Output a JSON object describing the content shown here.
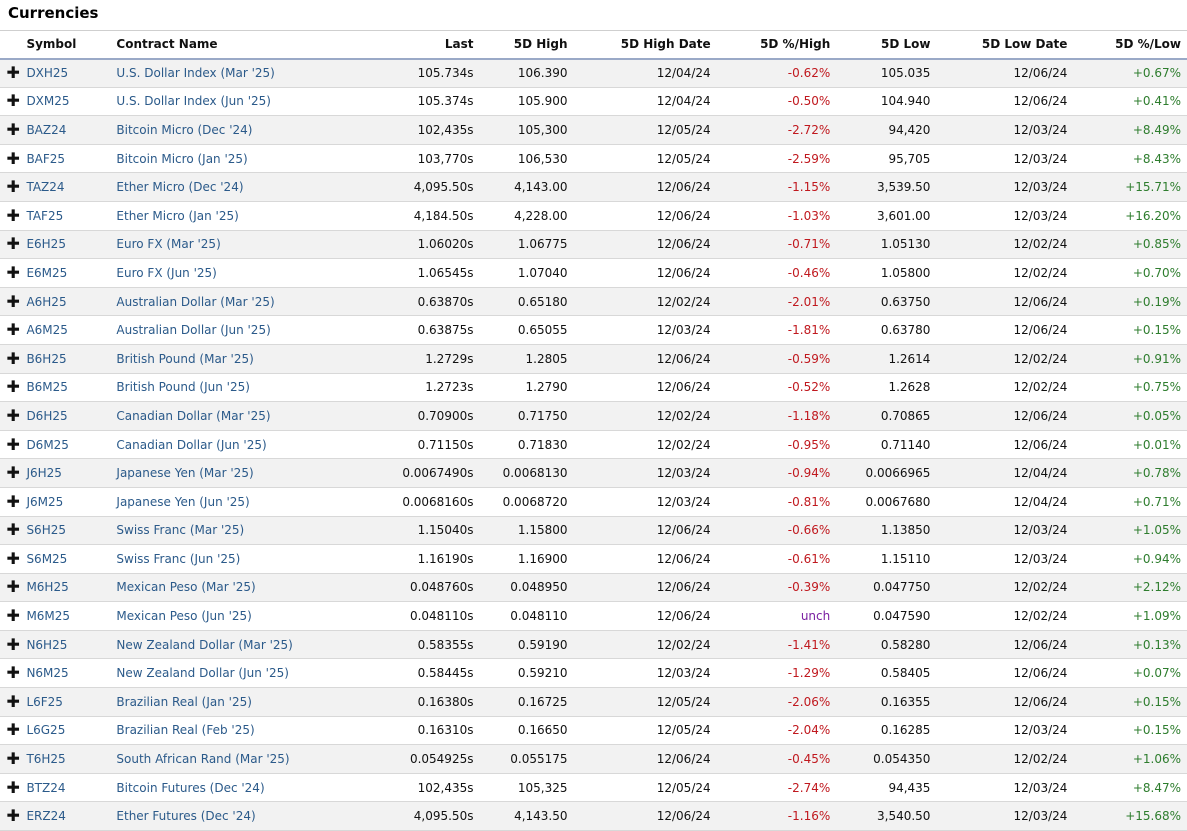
{
  "section_title": "Currencies",
  "columns": [
    "Symbol",
    "Contract Name",
    "Last",
    "5D High",
    "5D High Date",
    "5D %/High",
    "5D Low",
    "5D Low Date",
    "5D %/Low"
  ],
  "expand_icon": "plus-icon",
  "colors": {
    "link": "#2b5a8a",
    "negative": "#c0181e",
    "positive": "#2e7d2e",
    "unchanged": "#7a1fa2"
  },
  "rows": [
    {
      "symbol": "DXH25",
      "name": "U.S. Dollar Index (Mar '25)",
      "last": "105.734s",
      "high": "106.390",
      "high_date": "12/04/24",
      "pct_high": "-0.62%",
      "pct_high_dir": "neg",
      "low": "105.035",
      "low_date": "12/06/24",
      "pct_low": "+0.67%"
    },
    {
      "symbol": "DXM25",
      "name": "U.S. Dollar Index (Jun '25)",
      "last": "105.374s",
      "high": "105.900",
      "high_date": "12/04/24",
      "pct_high": "-0.50%",
      "pct_high_dir": "neg",
      "low": "104.940",
      "low_date": "12/06/24",
      "pct_low": "+0.41%"
    },
    {
      "symbol": "BAZ24",
      "name": "Bitcoin Micro (Dec '24)",
      "last": "102,435s",
      "high": "105,300",
      "high_date": "12/05/24",
      "pct_high": "-2.72%",
      "pct_high_dir": "neg",
      "low": "94,420",
      "low_date": "12/03/24",
      "pct_low": "+8.49%"
    },
    {
      "symbol": "BAF25",
      "name": "Bitcoin Micro (Jan '25)",
      "last": "103,770s",
      "high": "106,530",
      "high_date": "12/05/24",
      "pct_high": "-2.59%",
      "pct_high_dir": "neg",
      "low": "95,705",
      "low_date": "12/03/24",
      "pct_low": "+8.43%"
    },
    {
      "symbol": "TAZ24",
      "name": "Ether Micro (Dec '24)",
      "last": "4,095.50s",
      "high": "4,143.00",
      "high_date": "12/06/24",
      "pct_high": "-1.15%",
      "pct_high_dir": "neg",
      "low": "3,539.50",
      "low_date": "12/03/24",
      "pct_low": "+15.71%"
    },
    {
      "symbol": "TAF25",
      "name": "Ether Micro (Jan '25)",
      "last": "4,184.50s",
      "high": "4,228.00",
      "high_date": "12/06/24",
      "pct_high": "-1.03%",
      "pct_high_dir": "neg",
      "low": "3,601.00",
      "low_date": "12/03/24",
      "pct_low": "+16.20%"
    },
    {
      "symbol": "E6H25",
      "name": "Euro FX (Mar '25)",
      "last": "1.06020s",
      "high": "1.06775",
      "high_date": "12/06/24",
      "pct_high": "-0.71%",
      "pct_high_dir": "neg",
      "low": "1.05130",
      "low_date": "12/02/24",
      "pct_low": "+0.85%"
    },
    {
      "symbol": "E6M25",
      "name": "Euro FX (Jun '25)",
      "last": "1.06545s",
      "high": "1.07040",
      "high_date": "12/06/24",
      "pct_high": "-0.46%",
      "pct_high_dir": "neg",
      "low": "1.05800",
      "low_date": "12/02/24",
      "pct_low": "+0.70%"
    },
    {
      "symbol": "A6H25",
      "name": "Australian Dollar (Mar '25)",
      "last": "0.63870s",
      "high": "0.65180",
      "high_date": "12/02/24",
      "pct_high": "-2.01%",
      "pct_high_dir": "neg",
      "low": "0.63750",
      "low_date": "12/06/24",
      "pct_low": "+0.19%"
    },
    {
      "symbol": "A6M25",
      "name": "Australian Dollar (Jun '25)",
      "last": "0.63875s",
      "high": "0.65055",
      "high_date": "12/03/24",
      "pct_high": "-1.81%",
      "pct_high_dir": "neg",
      "low": "0.63780",
      "low_date": "12/06/24",
      "pct_low": "+0.15%"
    },
    {
      "symbol": "B6H25",
      "name": "British Pound (Mar '25)",
      "last": "1.2729s",
      "high": "1.2805",
      "high_date": "12/06/24",
      "pct_high": "-0.59%",
      "pct_high_dir": "neg",
      "low": "1.2614",
      "low_date": "12/02/24",
      "pct_low": "+0.91%"
    },
    {
      "symbol": "B6M25",
      "name": "British Pound (Jun '25)",
      "last": "1.2723s",
      "high": "1.2790",
      "high_date": "12/06/24",
      "pct_high": "-0.52%",
      "pct_high_dir": "neg",
      "low": "1.2628",
      "low_date": "12/02/24",
      "pct_low": "+0.75%"
    },
    {
      "symbol": "D6H25",
      "name": "Canadian Dollar (Mar '25)",
      "last": "0.70900s",
      "high": "0.71750",
      "high_date": "12/02/24",
      "pct_high": "-1.18%",
      "pct_high_dir": "neg",
      "low": "0.70865",
      "low_date": "12/06/24",
      "pct_low": "+0.05%"
    },
    {
      "symbol": "D6M25",
      "name": "Canadian Dollar (Jun '25)",
      "last": "0.71150s",
      "high": "0.71830",
      "high_date": "12/02/24",
      "pct_high": "-0.95%",
      "pct_high_dir": "neg",
      "low": "0.71140",
      "low_date": "12/06/24",
      "pct_low": "+0.01%"
    },
    {
      "symbol": "J6H25",
      "name": "Japanese Yen (Mar '25)",
      "last": "0.0067490s",
      "high": "0.0068130",
      "high_date": "12/03/24",
      "pct_high": "-0.94%",
      "pct_high_dir": "neg",
      "low": "0.0066965",
      "low_date": "12/04/24",
      "pct_low": "+0.78%"
    },
    {
      "symbol": "J6M25",
      "name": "Japanese Yen (Jun '25)",
      "last": "0.0068160s",
      "high": "0.0068720",
      "high_date": "12/03/24",
      "pct_high": "-0.81%",
      "pct_high_dir": "neg",
      "low": "0.0067680",
      "low_date": "12/04/24",
      "pct_low": "+0.71%"
    },
    {
      "symbol": "S6H25",
      "name": "Swiss Franc (Mar '25)",
      "last": "1.15040s",
      "high": "1.15800",
      "high_date": "12/06/24",
      "pct_high": "-0.66%",
      "pct_high_dir": "neg",
      "low": "1.13850",
      "low_date": "12/03/24",
      "pct_low": "+1.05%"
    },
    {
      "symbol": "S6M25",
      "name": "Swiss Franc (Jun '25)",
      "last": "1.16190s",
      "high": "1.16900",
      "high_date": "12/06/24",
      "pct_high": "-0.61%",
      "pct_high_dir": "neg",
      "low": "1.15110",
      "low_date": "12/03/24",
      "pct_low": "+0.94%"
    },
    {
      "symbol": "M6H25",
      "name": "Mexican Peso (Mar '25)",
      "last": "0.048760s",
      "high": "0.048950",
      "high_date": "12/06/24",
      "pct_high": "-0.39%",
      "pct_high_dir": "neg",
      "low": "0.047750",
      "low_date": "12/02/24",
      "pct_low": "+2.12%"
    },
    {
      "symbol": "M6M25",
      "name": "Mexican Peso (Jun '25)",
      "last": "0.048110s",
      "high": "0.048110",
      "high_date": "12/06/24",
      "pct_high": "unch",
      "pct_high_dir": "unch",
      "low": "0.047590",
      "low_date": "12/02/24",
      "pct_low": "+1.09%"
    },
    {
      "symbol": "N6H25",
      "name": "New Zealand Dollar (Mar '25)",
      "last": "0.58355s",
      "high": "0.59190",
      "high_date": "12/02/24",
      "pct_high": "-1.41%",
      "pct_high_dir": "neg",
      "low": "0.58280",
      "low_date": "12/06/24",
      "pct_low": "+0.13%"
    },
    {
      "symbol": "N6M25",
      "name": "New Zealand Dollar (Jun '25)",
      "last": "0.58445s",
      "high": "0.59210",
      "high_date": "12/03/24",
      "pct_high": "-1.29%",
      "pct_high_dir": "neg",
      "low": "0.58405",
      "low_date": "12/06/24",
      "pct_low": "+0.07%"
    },
    {
      "symbol": "L6F25",
      "name": "Brazilian Real (Jan '25)",
      "last": "0.16380s",
      "high": "0.16725",
      "high_date": "12/05/24",
      "pct_high": "-2.06%",
      "pct_high_dir": "neg",
      "low": "0.16355",
      "low_date": "12/06/24",
      "pct_low": "+0.15%"
    },
    {
      "symbol": "L6G25",
      "name": "Brazilian Real (Feb '25)",
      "last": "0.16310s",
      "high": "0.16650",
      "high_date": "12/05/24",
      "pct_high": "-2.04%",
      "pct_high_dir": "neg",
      "low": "0.16285",
      "low_date": "12/03/24",
      "pct_low": "+0.15%"
    },
    {
      "symbol": "T6H25",
      "name": "South African Rand (Mar '25)",
      "last": "0.054925s",
      "high": "0.055175",
      "high_date": "12/06/24",
      "pct_high": "-0.45%",
      "pct_high_dir": "neg",
      "low": "0.054350",
      "low_date": "12/02/24",
      "pct_low": "+1.06%"
    },
    {
      "symbol": "BTZ24",
      "name": "Bitcoin Futures (Dec '24)",
      "last": "102,435s",
      "high": "105,325",
      "high_date": "12/05/24",
      "pct_high": "-2.74%",
      "pct_high_dir": "neg",
      "low": "94,435",
      "low_date": "12/03/24",
      "pct_low": "+8.47%"
    },
    {
      "symbol": "ERZ24",
      "name": "Ether Futures (Dec '24)",
      "last": "4,095.50s",
      "high": "4,143.50",
      "high_date": "12/06/24",
      "pct_high": "-1.16%",
      "pct_high_dir": "neg",
      "low": "3,540.50",
      "low_date": "12/03/24",
      "pct_low": "+15.68%"
    }
  ]
}
